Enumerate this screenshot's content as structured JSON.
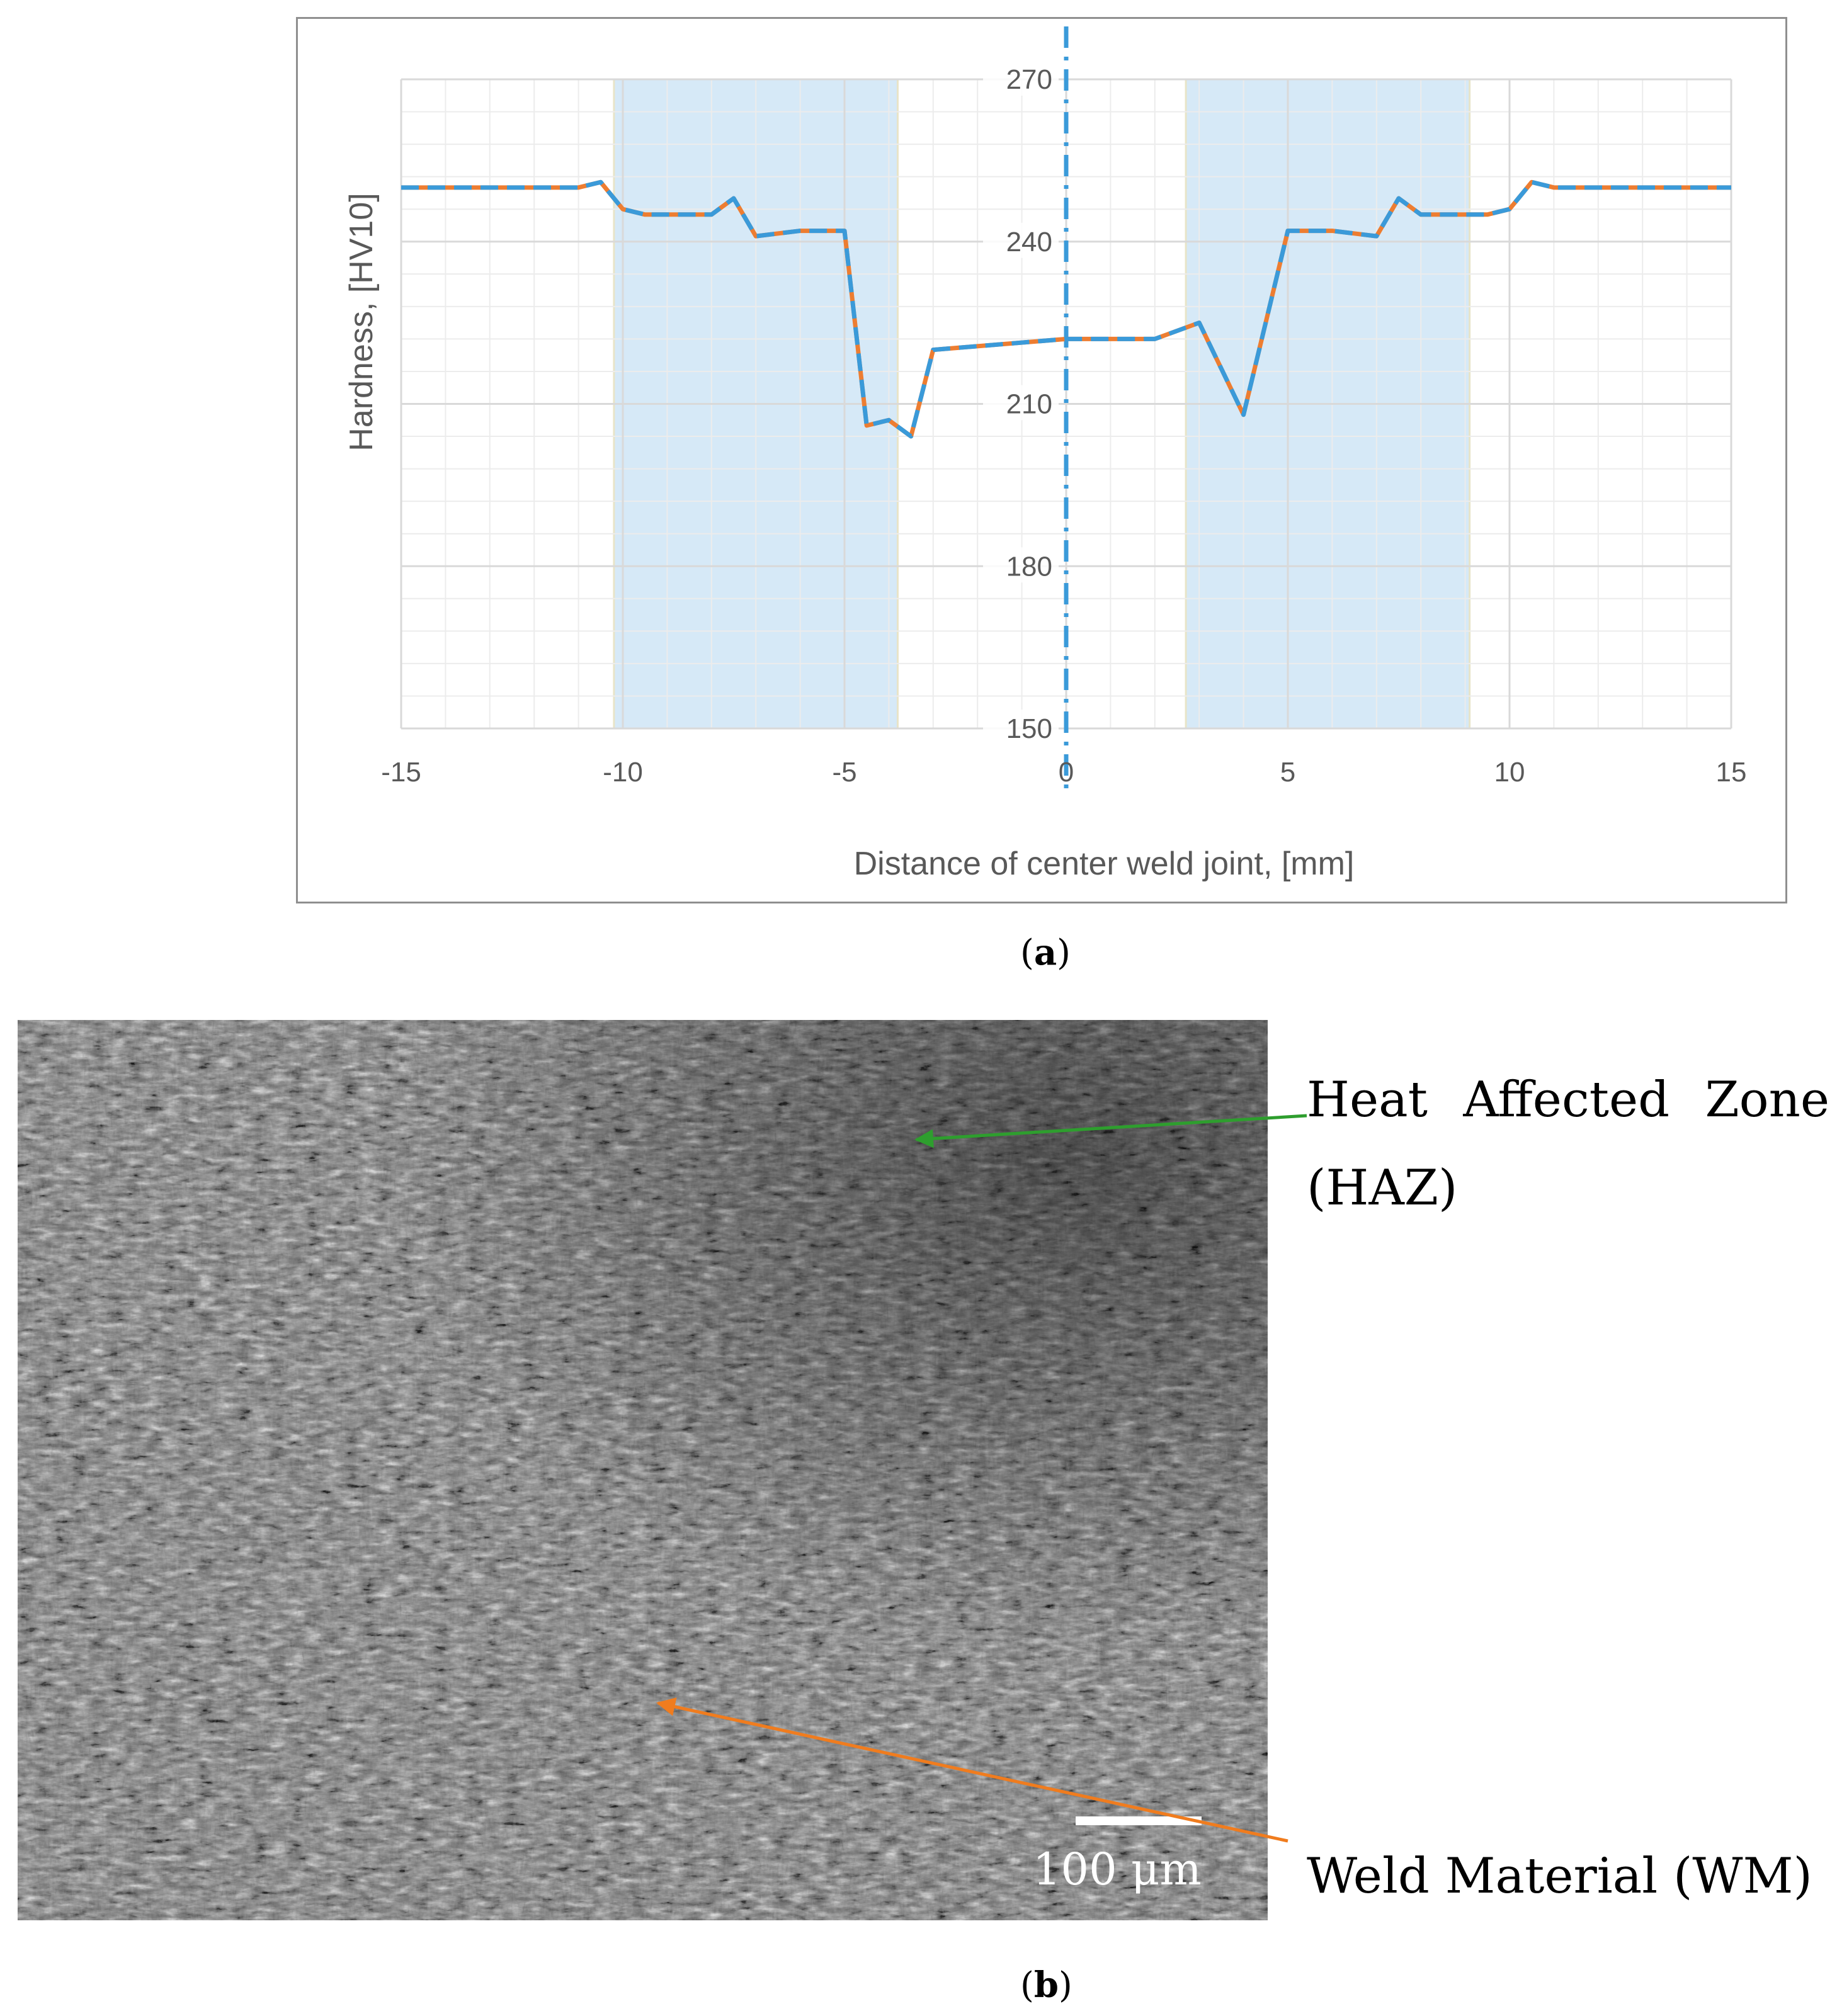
{
  "panel_a_caption": {
    "open": "(",
    "letter": "a",
    "close": ")"
  },
  "panel_b_caption": {
    "open": "(",
    "letter": "b",
    "close": ")"
  },
  "colors": {
    "series_blue": "#3a9ad9",
    "series_orange": "#ed7d31",
    "zone_fill": "#d6e9f7",
    "grid": "#d9d9d9",
    "haz_arrow": "#2e9e2e",
    "wm_arrow": "#f07c1e"
  },
  "chart_data": {
    "type": "line",
    "title": "",
    "xlabel": "Distance of center weld joint, [mm]",
    "ylabel": "Hardness, [HV10]",
    "xlim": [
      -15,
      15
    ],
    "ylim": [
      150,
      270
    ],
    "xticks": [
      -15,
      -10,
      -5,
      0,
      5,
      10,
      15
    ],
    "yticks": [
      150,
      180,
      210,
      240,
      270
    ],
    "grid": true,
    "vertical_reference_line_x": 0,
    "shaded_zones": [
      [
        -10.2,
        -3.8
      ],
      [
        2.7,
        9.1
      ]
    ],
    "series": [
      {
        "x": [
          -15,
          -11,
          -10.5,
          -10,
          -9.5,
          -8,
          -7.5,
          -7,
          -6,
          -5,
          -4.5,
          -4,
          -3.5,
          -3,
          0,
          2,
          3,
          4,
          5,
          6,
          7,
          7.5,
          8,
          9.5,
          10,
          10.5,
          11,
          15
        ],
        "y": [
          250,
          250,
          251,
          246,
          245,
          245,
          248,
          241,
          242,
          242,
          206,
          207,
          204,
          220,
          222,
          222,
          225,
          208,
          242,
          242,
          241,
          248,
          245,
          245,
          246,
          251,
          250,
          250
        ]
      }
    ]
  },
  "micrograph": {
    "haz_label_line1": "Heat Affected Zone",
    "haz_label_line2": "(HAZ)",
    "wm_label": "Weld Material (WM)",
    "scale_bar_label": "100 μm"
  }
}
